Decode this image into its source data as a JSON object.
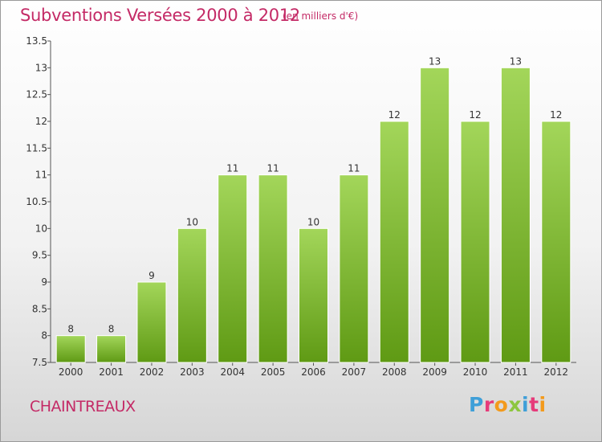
{
  "header": {
    "title": "Subventions Versées 2000 à 2012",
    "subtitle": "(en milliers d'€)"
  },
  "footer": {
    "commune": "CHAINTREAUX",
    "brand_letters": [
      "P",
      "r",
      "o",
      "x",
      "i",
      "t",
      "i"
    ],
    "brand_colors": [
      "#3f9fd8",
      "#e63b7a",
      "#f39a1c",
      "#8dc63f",
      "#3f9fd8",
      "#e63b7a",
      "#f39a1c"
    ]
  },
  "chart_data": {
    "type": "bar",
    "title": "Subventions Versées 2000 à 2012",
    "subtitle": "(en milliers d'€)",
    "categories": [
      "2000",
      "2001",
      "2002",
      "2003",
      "2004",
      "2005",
      "2006",
      "2007",
      "2008",
      "2009",
      "2010",
      "2011",
      "2012"
    ],
    "values": [
      8,
      8,
      9,
      10,
      11,
      11,
      10,
      11,
      12,
      13,
      12,
      13,
      12
    ],
    "data_labels": [
      "8",
      "8",
      "9",
      "10",
      "11",
      "11",
      "10",
      "11",
      "12",
      "13",
      "12",
      "13",
      "12"
    ],
    "ylim": [
      7.5,
      13.5
    ],
    "yticks": [
      7.5,
      8,
      8.5,
      9,
      9.5,
      10,
      10.5,
      11,
      11.5,
      12,
      12.5,
      13,
      13.5
    ],
    "ytick_labels": [
      "7.5",
      "8",
      "8.5",
      "9",
      "9.5",
      "10",
      "10.5",
      "11",
      "11.5",
      "12",
      "12.5",
      "13",
      "13.5"
    ],
    "grid": false,
    "colors": {
      "bar_top": "#a3d65a",
      "bar_bottom": "#5f9a14",
      "bar_edge": "#ffffff",
      "axis": "#555555"
    }
  }
}
